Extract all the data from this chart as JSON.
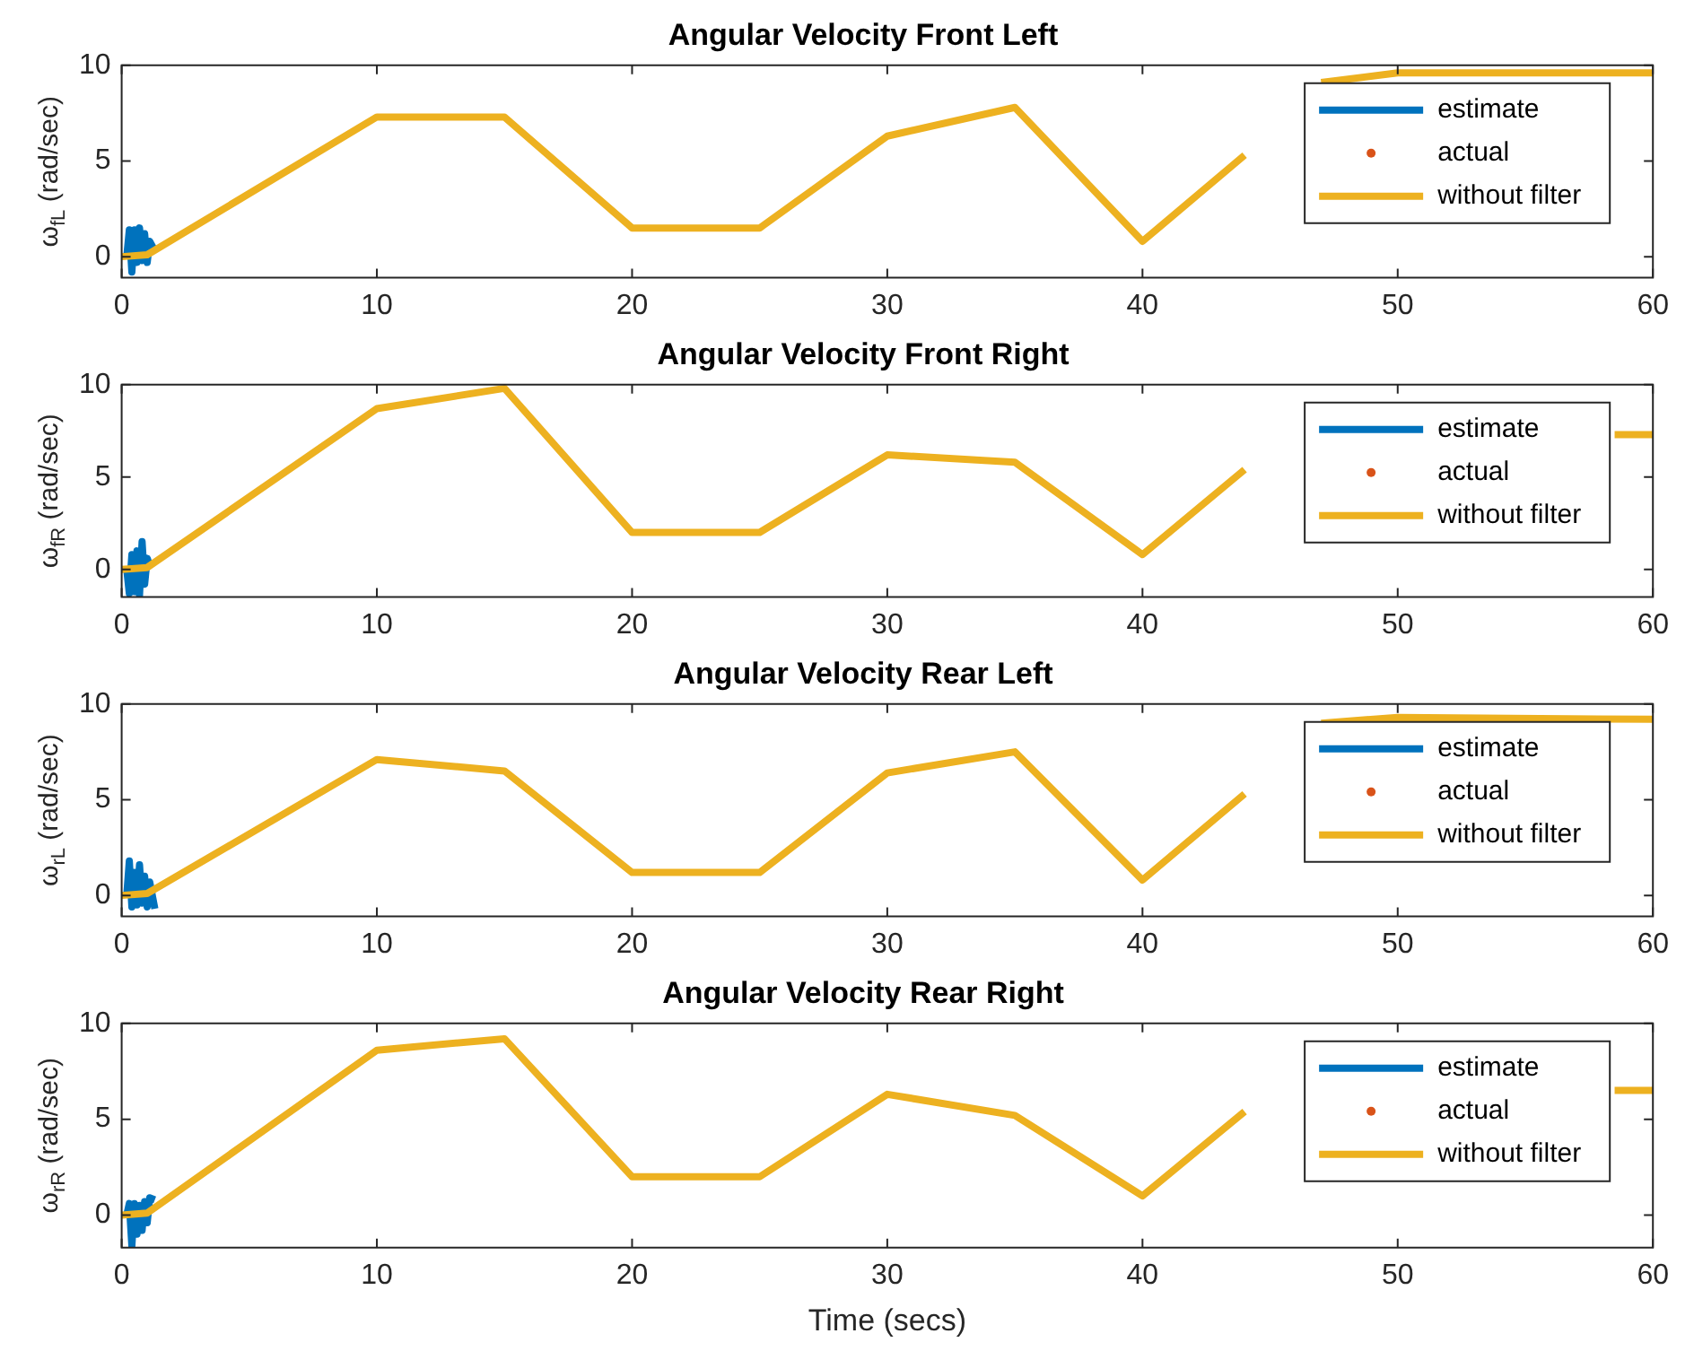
{
  "chart_data": [
    {
      "type": "line",
      "title": "Angular Velocity Front Left",
      "ylabel": "ω$_{fL}$ (rad/sec)",
      "xlim": [
        0,
        60
      ],
      "xticks": [
        0,
        10,
        20,
        30,
        40,
        50,
        60
      ],
      "ylim": [
        -1.1,
        10
      ],
      "yticks": [
        0,
        5,
        10
      ],
      "grid": false,
      "legend": "top right",
      "series": [
        {
          "name": "estimate",
          "type": "line",
          "color": "#0072bd",
          "marker": "none",
          "x": [
            0.2,
            0.3,
            0.4,
            0.5,
            0.6,
            0.7,
            0.8,
            0.9,
            1.0,
            1.1,
            1.3
          ],
          "values": [
            0,
            1.4,
            -0.8,
            1.4,
            -0.3,
            1.5,
            -0.2,
            1.2,
            -0.3,
            0.8,
            0.3
          ]
        },
        {
          "name": "actual",
          "type": "scatter",
          "color": "#d95319",
          "marker": "circle"
        },
        {
          "name": "without filter",
          "type": "line",
          "color": "#edb120",
          "marker": "none",
          "x": [
            0,
            1,
            10,
            15,
            20,
            25,
            30,
            35,
            40,
            44,
            45.5,
            47,
            50,
            60
          ],
          "values": [
            0,
            0.1,
            7.3,
            7.3,
            1.5,
            1.5,
            6.3,
            7.8,
            0.8,
            5.3,
            null,
            9.1,
            9.6,
            9.6
          ]
        }
      ]
    },
    {
      "type": "line",
      "title": "Angular Velocity Front Right",
      "ylabel": "ω$_{fR}$ (rad/sec)",
      "xlim": [
        0,
        60
      ],
      "xticks": [
        0,
        10,
        20,
        30,
        40,
        50,
        60
      ],
      "ylim": [
        -1.5,
        10
      ],
      "yticks": [
        0,
        5,
        10
      ],
      "grid": false,
      "legend": "top right",
      "series": [
        {
          "name": "estimate",
          "type": "line",
          "color": "#0072bd",
          "marker": "none",
          "x": [
            0.2,
            0.3,
            0.4,
            0.5,
            0.6,
            0.7,
            0.8,
            0.9,
            1.0,
            1.1
          ],
          "values": [
            0,
            -1.3,
            0.8,
            -1.2,
            1.0,
            -1.4,
            1.5,
            -0.8,
            0.6,
            0.2
          ]
        },
        {
          "name": "actual",
          "type": "scatter",
          "color": "#d95319",
          "marker": "circle"
        },
        {
          "name": "without filter",
          "type": "line",
          "color": "#edb120",
          "marker": "none",
          "x": [
            0,
            1,
            10,
            15,
            20,
            25,
            30,
            35,
            40,
            44,
            50,
            58.5,
            60
          ],
          "values": [
            0,
            0.1,
            8.7,
            9.8,
            2,
            2,
            6.2,
            5.8,
            0.8,
            5.4,
            null,
            7.3,
            7.3
          ]
        }
      ]
    },
    {
      "type": "line",
      "title": "Angular Velocity Rear Left",
      "ylabel": "ω$_{rL}$ (rad/sec)",
      "xlim": [
        0,
        60
      ],
      "xticks": [
        0,
        10,
        20,
        30,
        40,
        50,
        60
      ],
      "ylim": [
        -1.1,
        10
      ],
      "yticks": [
        0,
        5,
        10
      ],
      "grid": false,
      "legend": "top right",
      "series": [
        {
          "name": "estimate",
          "type": "line",
          "color": "#0072bd",
          "marker": "none",
          "x": [
            0.2,
            0.3,
            0.4,
            0.5,
            0.6,
            0.7,
            0.8,
            0.9,
            1.0,
            1.1,
            1.3
          ],
          "values": [
            0,
            1.8,
            -0.6,
            1.2,
            -0.5,
            1.6,
            -0.4,
            1.0,
            -0.6,
            0.7,
            -0.7
          ]
        },
        {
          "name": "actual",
          "type": "scatter",
          "color": "#d95319",
          "marker": "circle"
        },
        {
          "name": "without filter",
          "type": "line",
          "color": "#edb120",
          "marker": "none",
          "x": [
            0,
            1,
            10,
            15,
            20,
            25,
            30,
            35,
            40,
            44,
            45.5,
            47,
            50,
            60
          ],
          "values": [
            0,
            0.1,
            7.1,
            6.5,
            1.2,
            1.2,
            6.4,
            7.5,
            0.8,
            5.3,
            null,
            9,
            9.3,
            9.2
          ]
        }
      ]
    },
    {
      "type": "line",
      "title": "Angular Velocity Rear Right",
      "xlabel": "Time (secs)",
      "ylabel": "ω$_{rR}$ (rad/sec)",
      "xlim": [
        0,
        60
      ],
      "xticks": [
        0,
        10,
        20,
        30,
        40,
        50,
        60
      ],
      "ylim": [
        -1.7,
        10
      ],
      "yticks": [
        0,
        5,
        10
      ],
      "grid": false,
      "legend": "top right",
      "series": [
        {
          "name": "estimate",
          "type": "line",
          "color": "#0072bd",
          "marker": "none",
          "x": [
            0.2,
            0.3,
            0.4,
            0.5,
            0.6,
            0.7,
            0.8,
            0.9,
            1.0,
            1.1,
            1.3
          ],
          "values": [
            0,
            0.6,
            -1.6,
            0.6,
            -1.0,
            0.5,
            -0.8,
            0.7,
            -0.4,
            0.9,
            0.8
          ]
        },
        {
          "name": "actual",
          "type": "scatter",
          "color": "#d95319",
          "marker": "circle"
        },
        {
          "name": "without filter",
          "type": "line",
          "color": "#edb120",
          "marker": "none",
          "x": [
            0,
            1,
            10,
            15,
            20,
            25,
            30,
            35,
            40,
            44,
            50,
            58.5,
            60
          ],
          "values": [
            0,
            0.1,
            8.6,
            9.2,
            2,
            2,
            6.3,
            5.2,
            1,
            5.4,
            null,
            6.5,
            6.5
          ]
        }
      ]
    }
  ]
}
